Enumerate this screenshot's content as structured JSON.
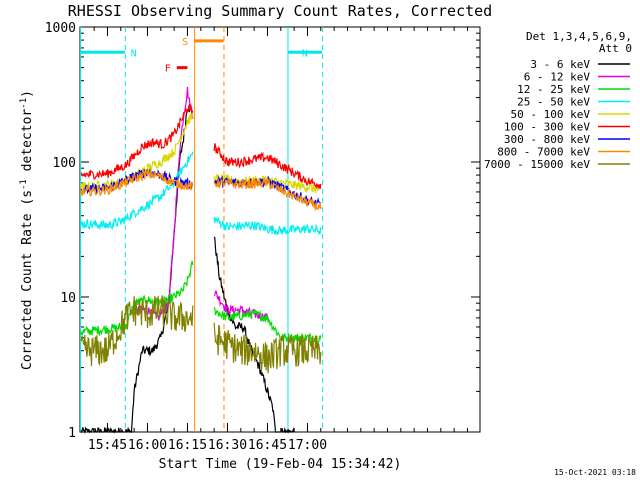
{
  "chart_data": {
    "type": "line",
    "title": "RHESSI Observing Summary Count Rates, Corrected",
    "xlabel": "Start Time (19-Feb-04 15:34:42)",
    "ylabel_main": "Corrected Count Rate (s",
    "ylabel_sup1": "-1",
    "ylabel_mid": " detector",
    "ylabel_sup2": "-1",
    "ylabel_end": ")",
    "yscale": "log",
    "ylim": [
      1,
      1000
    ],
    "xlim_minutes": [
      34.7,
      184.7
    ],
    "x_ticks": [
      {
        "label": "15:45",
        "m": 45
      },
      {
        "label": "16:00",
        "m": 60
      },
      {
        "label": "16:15",
        "m": 75
      },
      {
        "label": "16:30",
        "m": 90
      },
      {
        "label": "16:45",
        "m": 105
      },
      {
        "label": "17:00",
        "m": 120
      }
    ],
    "y_ticks": [
      {
        "label": "1",
        "v": 1
      },
      {
        "label": "10",
        "v": 10
      },
      {
        "label": "100",
        "v": 100
      },
      {
        "label": "1000",
        "v": 1000
      }
    ],
    "legend_header": [
      "Det 1,3,4,5,6,9,",
      "Att 0"
    ],
    "legend_position": "right",
    "series": [
      {
        "name": "3 - 6 keV",
        "color": "#000000",
        "points": [
          [
            35,
            1
          ],
          [
            54,
            1
          ],
          [
            55,
            2
          ],
          [
            58,
            4
          ],
          [
            62,
            4
          ],
          [
            65,
            5
          ],
          [
            68,
            9
          ],
          [
            70,
            30
          ],
          [
            72,
            100
          ],
          [
            73.5,
            150
          ],
          [
            75,
            260
          ],
          [
            76,
            250
          ],
          [
            77,
            220
          ],
          [
            85,
            28
          ],
          [
            87,
            14
          ],
          [
            90,
            8
          ],
          [
            93,
            6
          ],
          [
            96,
            6
          ],
          [
            99,
            4
          ],
          [
            102,
            3
          ],
          [
            105,
            2
          ],
          [
            107,
            1.5
          ],
          [
            108,
            1
          ],
          [
            115,
            1
          ]
        ]
      },
      {
        "name": "6 - 12 keV",
        "color": "#e000e0",
        "points": [
          [
            55,
            8
          ],
          [
            60,
            8
          ],
          [
            64,
            7
          ],
          [
            68,
            9
          ],
          [
            70,
            30
          ],
          [
            72,
            120
          ],
          [
            73.5,
            220
          ],
          [
            75,
            340
          ],
          [
            76,
            260
          ],
          [
            77,
            230
          ],
          [
            85,
            11
          ],
          [
            90,
            8
          ],
          [
            95,
            8
          ],
          [
            100,
            7.5
          ],
          [
            105,
            7
          ]
        ]
      },
      {
        "name": "12 - 25 keV",
        "color": "#00dd00",
        "points": [
          [
            35,
            5.5
          ],
          [
            45,
            5.8
          ],
          [
            52,
            6
          ],
          [
            55,
            9
          ],
          [
            60,
            9.5
          ],
          [
            65,
            9
          ],
          [
            70,
            10
          ],
          [
            73,
            11
          ],
          [
            75,
            13
          ],
          [
            77,
            18
          ],
          [
            85,
            8
          ],
          [
            90,
            7
          ],
          [
            100,
            7.5
          ],
          [
            105,
            7
          ],
          [
            110,
            5
          ],
          [
            120,
            5
          ],
          [
            125,
            5
          ]
        ]
      },
      {
        "name": "25 - 50 keV",
        "color": "#00f0f0",
        "points": [
          [
            35,
            35
          ],
          [
            45,
            34
          ],
          [
            50,
            36
          ],
          [
            55,
            42
          ],
          [
            60,
            48
          ],
          [
            65,
            56
          ],
          [
            70,
            70
          ],
          [
            74,
            95
          ],
          [
            77,
            115
          ],
          [
            85,
            38
          ],
          [
            90,
            33
          ],
          [
            100,
            34
          ],
          [
            105,
            32
          ],
          [
            110,
            31
          ],
          [
            120,
            32
          ],
          [
            125,
            31
          ]
        ]
      },
      {
        "name": "50 - 100 keV",
        "color": "#d8d800",
        "points": [
          [
            35,
            65
          ],
          [
            45,
            68
          ],
          [
            52,
            72
          ],
          [
            60,
            90
          ],
          [
            65,
            100
          ],
          [
            70,
            120
          ],
          [
            73,
            160
          ],
          [
            75,
            200
          ],
          [
            77,
            220
          ],
          [
            85,
            75
          ],
          [
            95,
            72
          ],
          [
            105,
            73
          ],
          [
            110,
            70
          ],
          [
            120,
            65
          ],
          [
            125,
            62
          ]
        ]
      },
      {
        "name": "100 - 300 keV",
        "color": "#ff0000",
        "points": [
          [
            35,
            80
          ],
          [
            45,
            82
          ],
          [
            52,
            95
          ],
          [
            58,
            130
          ],
          [
            62,
            140
          ],
          [
            66,
            135
          ],
          [
            70,
            160
          ],
          [
            73,
            210
          ],
          [
            75,
            250
          ],
          [
            77,
            240
          ],
          [
            85,
            130
          ],
          [
            90,
            100
          ],
          [
            95,
            100
          ],
          [
            100,
            105
          ],
          [
            105,
            108
          ],
          [
            110,
            95
          ],
          [
            120,
            72
          ],
          [
            125,
            68
          ]
        ]
      },
      {
        "name": "300 - 800 keV",
        "color": "#0000ff",
        "points": [
          [
            35,
            62
          ],
          [
            45,
            64
          ],
          [
            55,
            78
          ],
          [
            60,
            85
          ],
          [
            65,
            80
          ],
          [
            70,
            72
          ],
          [
            77,
            68
          ],
          [
            85,
            72
          ],
          [
            95,
            70
          ],
          [
            105,
            72
          ],
          [
            110,
            65
          ],
          [
            120,
            52
          ],
          [
            125,
            48
          ]
        ]
      },
      {
        "name": "800 - 7000 keV",
        "color": "#ff8800",
        "points": [
          [
            35,
            60
          ],
          [
            45,
            62
          ],
          [
            55,
            75
          ],
          [
            60,
            82
          ],
          [
            65,
            78
          ],
          [
            70,
            70
          ],
          [
            77,
            65
          ],
          [
            85,
            70
          ],
          [
            95,
            68
          ],
          [
            105,
            70
          ],
          [
            110,
            62
          ],
          [
            120,
            50
          ],
          [
            125,
            46
          ]
        ]
      },
      {
        "name": "7000 - 15000 keV",
        "color": "#808000",
        "points": [
          [
            35,
            4
          ],
          [
            45,
            4
          ],
          [
            52,
            7
          ],
          [
            55,
            8
          ],
          [
            60,
            7.5
          ],
          [
            65,
            8
          ],
          [
            70,
            7
          ],
          [
            75,
            7
          ],
          [
            77,
            7
          ],
          [
            85,
            5
          ],
          [
            95,
            4
          ],
          [
            100,
            4
          ],
          [
            105,
            3.5
          ],
          [
            110,
            4
          ],
          [
            120,
            4
          ],
          [
            125,
            4
          ]
        ]
      }
    ],
    "flags": [
      {
        "label": "N",
        "color": "#00e8e8",
        "start_m": 34.7,
        "end_m": 51.5,
        "value": 650
      },
      {
        "label": "N",
        "color": "#00e8e8",
        "start_m": 112.5,
        "end_m": 125.5,
        "value": 650
      },
      {
        "label": "S",
        "color": "#ff8800",
        "start_m": 77.5,
        "end_m": 88.5,
        "value": 790
      },
      {
        "label": "F",
        "color": "#ff0000",
        "start_m": 71,
        "end_m": 75,
        "value": 500
      }
    ],
    "timestamp": "15-Oct-2021 03:18"
  }
}
